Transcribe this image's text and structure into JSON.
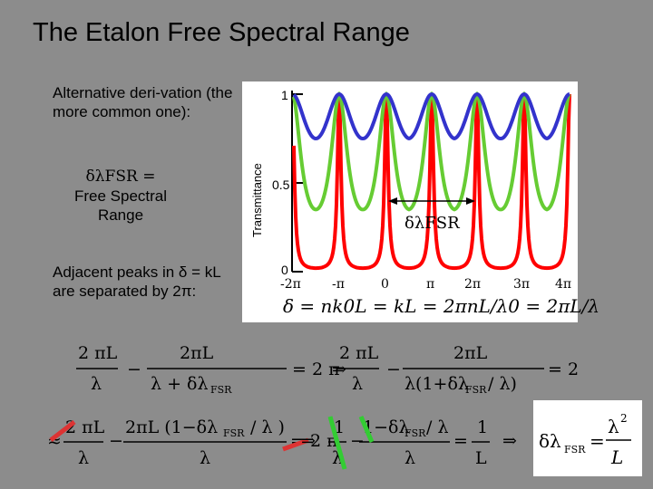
{
  "slide": {
    "title": "The Etalon Free Spectral Range",
    "intro": "Alternative deri-vation (the more common one):",
    "defn_symbol": "δλFSR =",
    "defn_text": "Free Spectral Range",
    "adjacent": "Adjacent peaks in δ = kL are separated by 2π:"
  },
  "chart_data": {
    "type": "line",
    "ylabel": "Transmittance",
    "yticks": [
      "0",
      "0.5",
      "1"
    ],
    "xticks": [
      "-2π",
      "-π",
      "0",
      "π",
      "2π",
      "3π",
      "4π"
    ],
    "x_formula": "δ = nk0L = kL = 2πnL/λ0 = 2πL/λ",
    "annotation": "δλFSR",
    "ylim": [
      0,
      1
    ],
    "series": [
      {
        "color": "#3333cc",
        "min": 0.75
      },
      {
        "color": "#66cc33",
        "min": 0.35
      },
      {
        "color": "#ff0000",
        "min": 0.02
      }
    ]
  },
  "colors": {
    "background": "#8c8c8c",
    "highlight_red": "#dd3333",
    "highlight_green": "#33cc33"
  }
}
